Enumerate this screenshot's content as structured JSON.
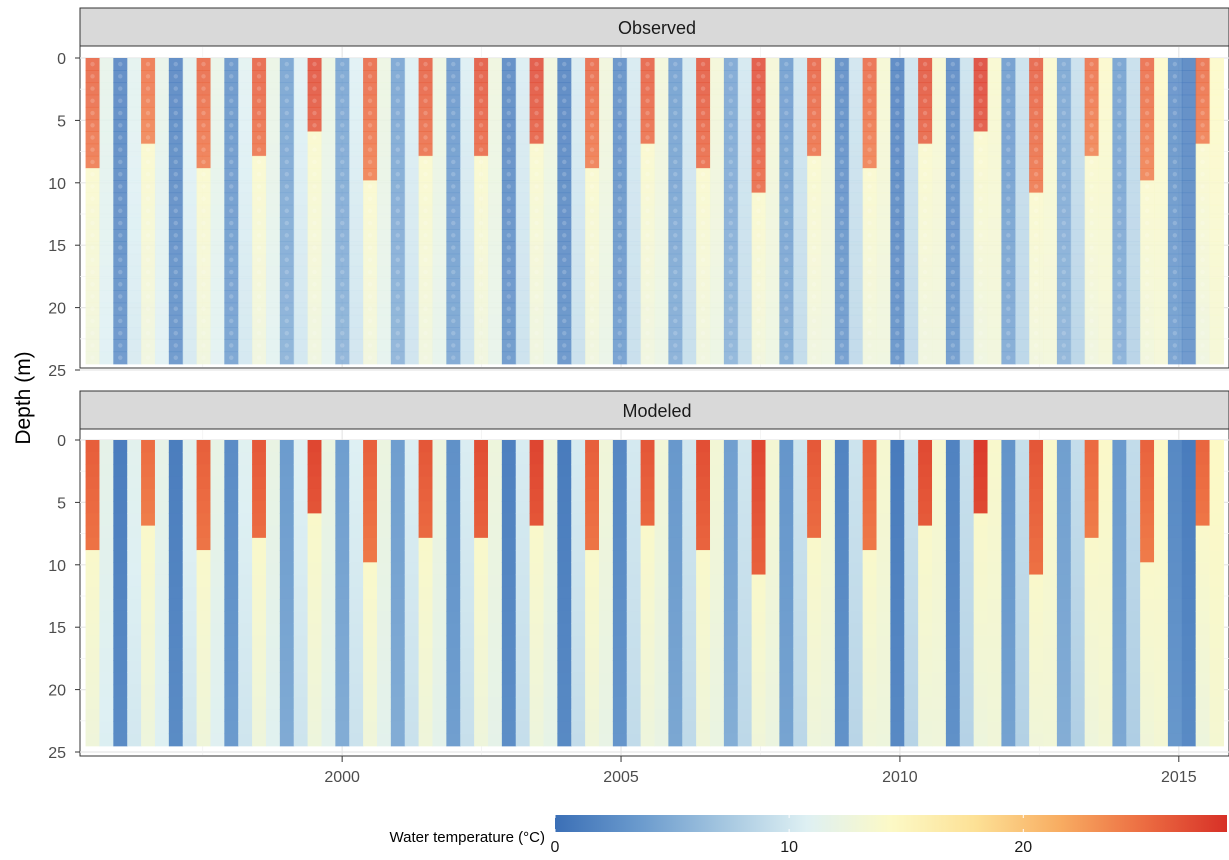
{
  "chart_data": {
    "type": "heatmap",
    "ylabel": "Depth (m)",
    "yticks": [
      0,
      5,
      10,
      15,
      20,
      25
    ],
    "ylim": [
      25,
      0
    ],
    "xticks": [
      2000,
      2005,
      2010,
      2015
    ],
    "xlim": [
      1995.3,
      2015.9
    ],
    "grid": true,
    "panels": [
      {
        "name": "Observed",
        "style": "points"
      },
      {
        "name": "Modeled",
        "style": "continuous"
      }
    ],
    "colorbar": {
      "title": "Water temperature (°C)",
      "ticks": [
        0,
        10,
        20
      ],
      "range": [
        0,
        28.7
      ],
      "palette": [
        "#3b6fb6",
        "#6a9acd",
        "#a4c6e0",
        "#def0f3",
        "#fcf9c6",
        "#fde196",
        "#f8ad62",
        "#ec6d42",
        "#d73027"
      ],
      "position": "bottom"
    },
    "profile_model": {
      "summer_surface_temp_C": 24.5,
      "summer_thermocline_depth_m": [
        6,
        13
      ],
      "summer_hypolimnion_temp_C": 14,
      "winter_temp_C": [
        1,
        4
      ],
      "spring_autumn_temp_C": [
        9,
        13
      ]
    },
    "seasons": [
      {
        "year": 1996,
        "summer_surface_temp_C": 23.5,
        "thermocline_m": 6.2
      },
      {
        "year": 1997,
        "summer_surface_temp_C": 24.2,
        "thermocline_m": 8.3
      },
      {
        "year": 1998,
        "summer_surface_temp_C": 24.5,
        "thermocline_m": 7.0
      },
      {
        "year": 1999,
        "summer_surface_temp_C": 25.5,
        "thermocline_m": 6.0
      },
      {
        "year": 2000,
        "summer_surface_temp_C": 24.0,
        "thermocline_m": 9.5
      },
      {
        "year": 2001,
        "summer_surface_temp_C": 24.5,
        "thermocline_m": 8.0
      },
      {
        "year": 2002,
        "summer_surface_temp_C": 25.0,
        "thermocline_m": 7.5
      },
      {
        "year": 2003,
        "summer_surface_temp_C": 25.5,
        "thermocline_m": 6.5
      },
      {
        "year": 2004,
        "summer_surface_temp_C": 24.0,
        "thermocline_m": 8.5
      },
      {
        "year": 2005,
        "summer_surface_temp_C": 24.5,
        "thermocline_m": 7.0
      },
      {
        "year": 2006,
        "summer_surface_temp_C": 25.0,
        "thermocline_m": 9.0
      },
      {
        "year": 2007,
        "summer_surface_temp_C": 25.5,
        "thermocline_m": 11.0
      },
      {
        "year": 2008,
        "summer_surface_temp_C": 24.5,
        "thermocline_m": 8.5
      },
      {
        "year": 2009,
        "summer_surface_temp_C": 24.0,
        "thermocline_m": 9.5
      },
      {
        "year": 2010,
        "summer_surface_temp_C": 25.5,
        "thermocline_m": 8.0
      },
      {
        "year": 2011,
        "summer_surface_temp_C": 26.5,
        "thermocline_m": 7.0
      },
      {
        "year": 2012,
        "summer_surface_temp_C": 25.0,
        "thermocline_m": 12.0
      },
      {
        "year": 2013,
        "summer_surface_temp_C": 24.0,
        "thermocline_m": 9.0
      },
      {
        "year": 2014,
        "summer_surface_temp_C": 24.5,
        "thermocline_m": 12.0
      },
      {
        "year": 2015,
        "summer_surface_temp_C": 24.5,
        "thermocline_m": 8.0
      }
    ]
  }
}
